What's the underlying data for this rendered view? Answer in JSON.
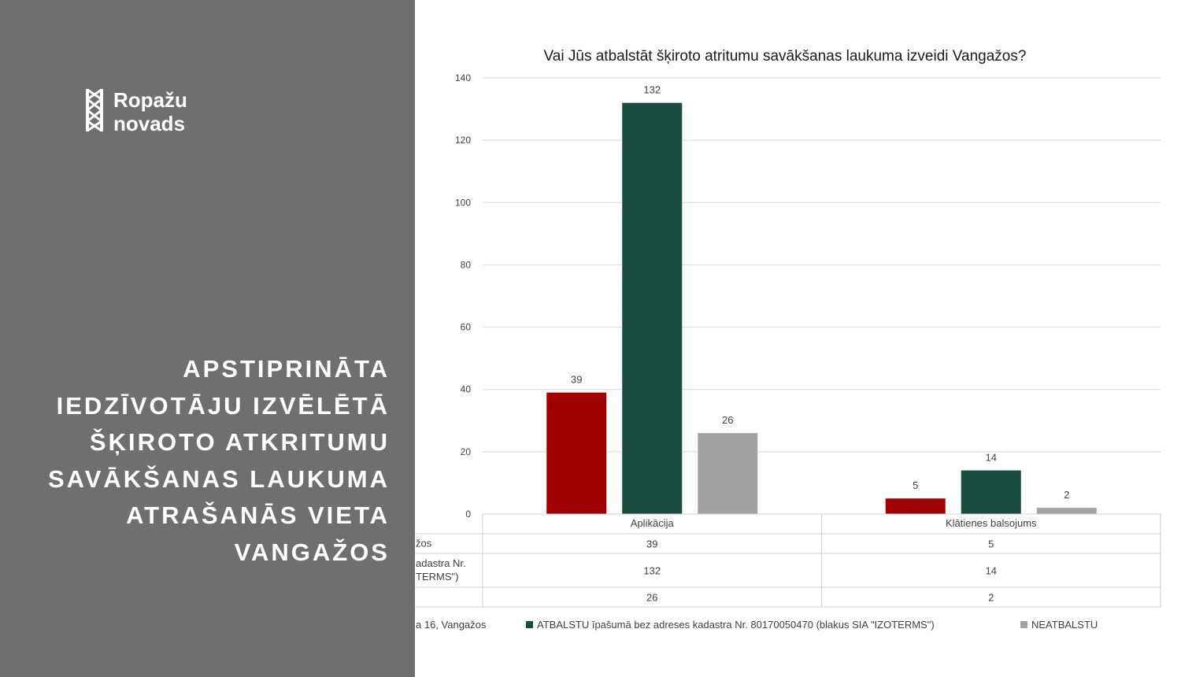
{
  "brand": {
    "logo_icon": "ropazu-ornament-icon",
    "line1": "Ropažu",
    "line2": "novads"
  },
  "headline": {
    "lines": [
      "APSTIPRINĀTA",
      "IEDZĪVOTĀJU IZVĒLĒTĀ",
      "ŠĶIROTO ATKRITUMU",
      "SAVĀKŠANAS LAUKUMA",
      "ATRAŠANĀS VIETA",
      "VANGAŽOS"
    ]
  },
  "colors": {
    "panel": "#6f6f6f",
    "series1": "#a00000",
    "series2": "#1a4d3f",
    "series3": "#a3a3a3",
    "gridline": "#d9d9d9",
    "axis_text": "#404040"
  },
  "chart_data": {
    "type": "bar",
    "title": "Vai Jūs atbalstāt šķiroto atritumu savākšanas laukuma izveidi Vangažos?",
    "categories": [
      "Aplikācija",
      "Klātienes balsojums"
    ],
    "ylim": [
      0,
      140
    ],
    "yticks": [
      0,
      20,
      40,
      60,
      80,
      100,
      120,
      140
    ],
    "grid": true,
    "legend_position": "bottom",
    "series": [
      {
        "row_label_lines": [
          "žos"
        ],
        "legend_label": "a 16, Vangažos",
        "values": [
          39,
          5
        ],
        "color": "#a00000"
      },
      {
        "row_label_lines": [
          "adastra Nr.",
          "TERMS\")"
        ],
        "legend_label": "ATBALSTU īpašumā bez adreses kadastra Nr. 80170050470 (blakus SIA \"IZOTERMS\")",
        "values": [
          132,
          14
        ],
        "color": "#1a4d3f"
      },
      {
        "row_label_lines": [],
        "legend_label": "NEATBALSTU",
        "values": [
          26,
          2
        ],
        "color": "#a3a3a3"
      }
    ]
  }
}
